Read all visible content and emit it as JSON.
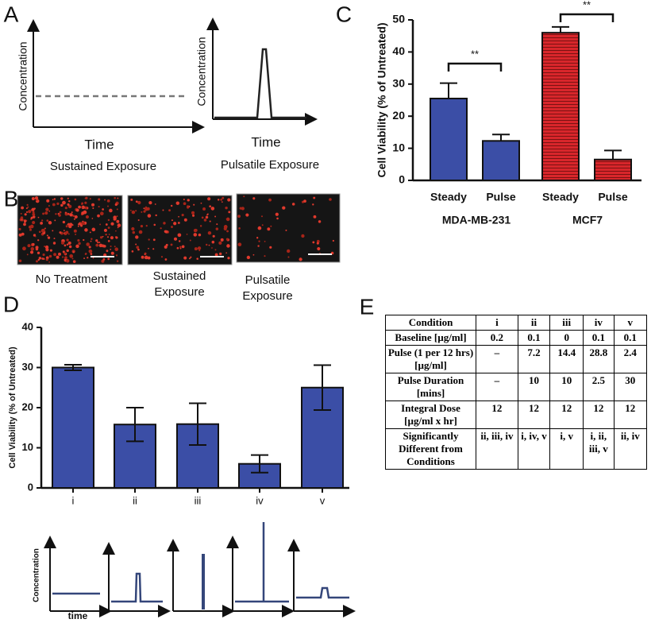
{
  "panel_labels": [
    "A",
    "B",
    "C",
    "D",
    "E"
  ],
  "panel_a": {
    "left": {
      "y_label": "Concentration",
      "x_label": "Time",
      "caption": "Sustained Exposure"
    },
    "right": {
      "y_label": "Concentration",
      "x_label": "Time",
      "caption": "Pulsatile Exposure"
    }
  },
  "panel_b": {
    "images": [
      {
        "label_lines": [
          "No Treatment"
        ]
      },
      {
        "label_lines": [
          "Sustained",
          "Exposure"
        ]
      },
      {
        "label_lines": [
          "Pulsatile",
          "Exposure"
        ]
      }
    ]
  },
  "chart_data": [
    {
      "type": "bar",
      "y_label": "Cell Viability (% of Untreated)",
      "categories": [
        "Steady",
        "Pulse",
        "Steady",
        "Pulse"
      ],
      "group_labels": [
        "MDA-MB-231",
        "MCF7"
      ],
      "values": [
        25.5,
        12.3,
        46,
        6.5
      ],
      "errors": [
        4.8,
        2,
        1.8,
        2.8
      ],
      "error_direction": "up",
      "colors": [
        "#3b4ea6",
        "#3b4ea6",
        "#d8262b",
        "#d8262b"
      ],
      "striped": [
        false,
        false,
        true,
        true
      ],
      "significance": [
        "**",
        "**"
      ],
      "ylim": [
        0,
        50
      ],
      "yticks": [
        0,
        10,
        20,
        30,
        40,
        50
      ]
    },
    {
      "type": "bar",
      "y_label": "Cell Viability (% of Untreated)",
      "categories": [
        "i",
        "ii",
        "iii",
        "iv",
        "v"
      ],
      "values": [
        30,
        15.8,
        15.9,
        6,
        25
      ],
      "errors": [
        0.7,
        4.2,
        5.2,
        2.2,
        5.6
      ],
      "error_direction": "both",
      "colors": [
        "#3b4ea6",
        "#3b4ea6",
        "#3b4ea6",
        "#3b4ea6",
        "#3b4ea6"
      ],
      "striped": [
        false,
        false,
        false,
        false,
        false
      ],
      "ylim": [
        0,
        40
      ],
      "yticks": [
        0,
        10,
        20,
        30,
        40
      ]
    }
  ],
  "panel_d_schematic": {
    "y_label": "Concentration",
    "x_label": "time"
  },
  "table": {
    "header": [
      "Condition",
      "i",
      "ii",
      "iii",
      "iv",
      "v"
    ],
    "rows": [
      [
        "Baseline [µg/ml]",
        "0.2",
        "0.1",
        "0",
        "0.1",
        "0.1"
      ],
      [
        "Pulse (1 per 12 hrs) [µg/ml]",
        "–",
        "7.2",
        "14.4",
        "28.8",
        "2.4"
      ],
      [
        "Pulse Duration [mins]",
        "–",
        "10",
        "10",
        "2.5",
        "30"
      ],
      [
        "Integral Dose [µg/ml x hr]",
        "12",
        "12",
        "12",
        "12",
        "12"
      ],
      [
        "Significantly Different from Conditions",
        "ii, iii, iv",
        "i, iv, v",
        "i, v",
        "i, ii, iii, v",
        "ii, iv"
      ]
    ]
  }
}
